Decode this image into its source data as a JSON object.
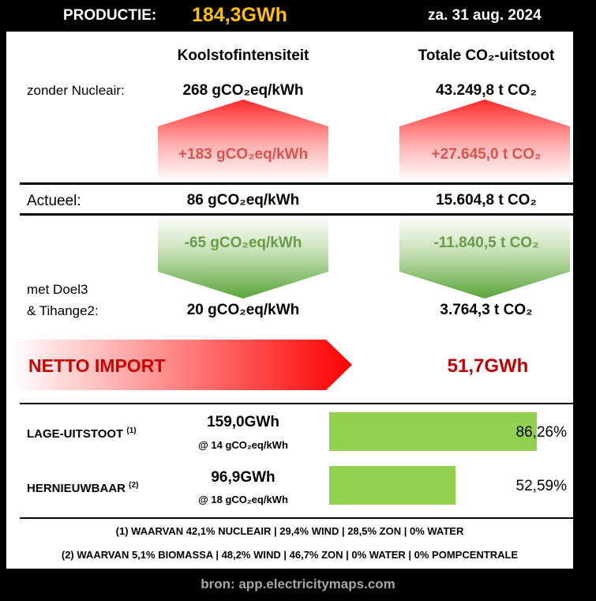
{
  "header": {
    "production_label": "PRODUCTIE:",
    "production_value": "184,3GWh",
    "date": "za. 31 aug. 2024"
  },
  "columns": {
    "intensity_title": "Koolstofintensiteit",
    "emission_title": "Totale CO₂-uitstoot"
  },
  "rows": {
    "without_nuclear": {
      "label": "zonder Nucleair:",
      "intensity": "268 gCO₂eq/kWh",
      "emission": "43.249,8 t CO₂"
    },
    "increase": {
      "intensity": "+183 gCO₂eq/kWh",
      "emission": "+27.645,0 t CO₂"
    },
    "actual": {
      "label": "Actueel:",
      "intensity": "86 gCO₂eq/kWh",
      "emission": "15.604,8 t CO₂"
    },
    "decrease": {
      "intensity": "-65 gCO₂eq/kWh",
      "emission": "-11.840,5 t CO₂"
    },
    "with_doel": {
      "label_line1": "met Doel3",
      "label_line2": "& Tihange2:",
      "intensity": "20 gCO₂eq/kWh",
      "emission": "3.764,3 t CO₂"
    }
  },
  "netto": {
    "label": "NETTO IMPORT",
    "value": "51,7GWh"
  },
  "categories": [
    {
      "label": "LAGE-UITSTOOT",
      "note_ref": "(1)",
      "gwh": "159,0GWh",
      "at": "@ 14 gCO₂eq/kWh",
      "percent_text": "86,26%",
      "percent": 86.26
    },
    {
      "label": "HERNIEUWBAAR",
      "note_ref": "(2)",
      "gwh": "96,9GWh",
      "at": "@ 18 gCO₂eq/kWh",
      "percent_text": "52,59%",
      "percent": 52.59
    }
  ],
  "notes": {
    "note1": "(1) WAARVAN 42,1% NUCLEAIR | 29,4% WIND | 28,5% ZON | 0% WATER",
    "note2": "(2) WAARVAN 5,1% BIOMASSA | 48,2% WIND | 46,7% ZON | 0% WATER | 0% POMPCENTRALE"
  },
  "source": "bron: app.electricitymaps.com",
  "colors": {
    "accent_yellow": "#ffc000",
    "red": "#c00000",
    "bar_green": "#92d050"
  }
}
